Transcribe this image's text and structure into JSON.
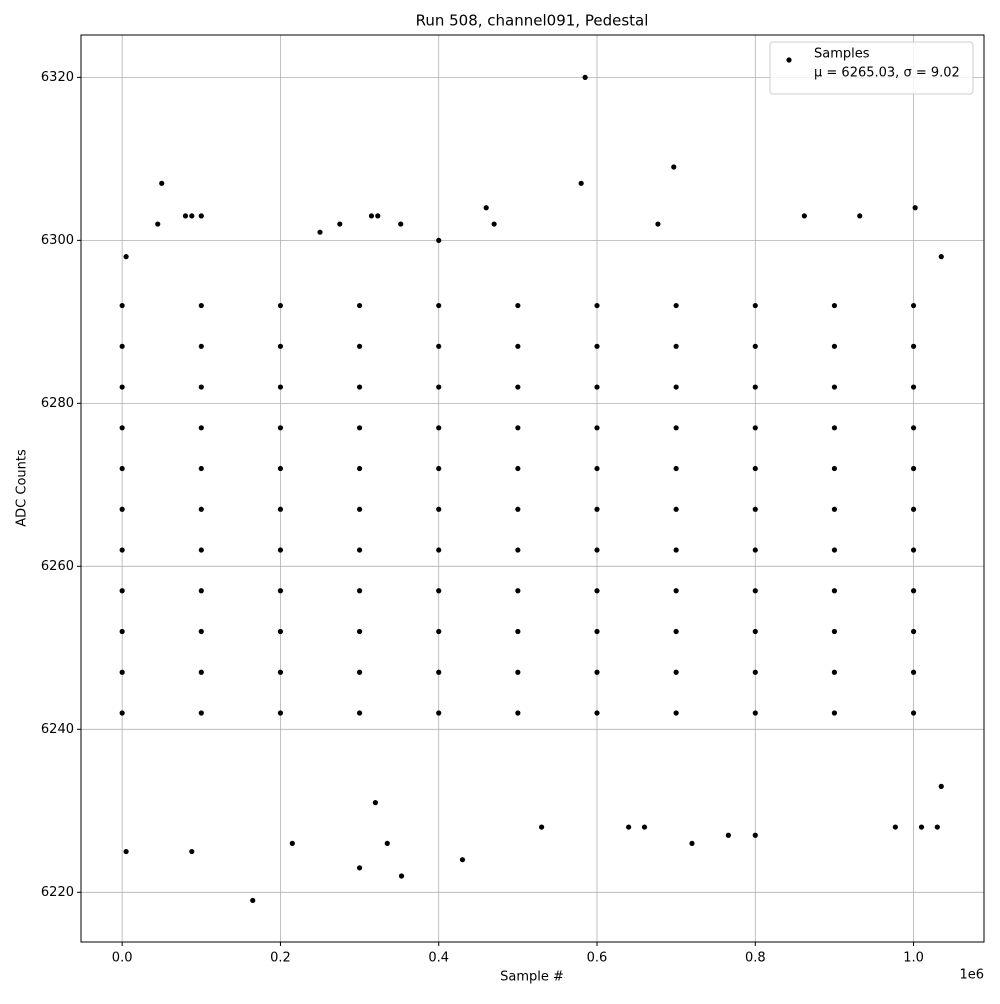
{
  "chart_data": {
    "type": "scatter",
    "title": "Run 508, channel091, Pedestal",
    "xlabel": "Sample #",
    "ylabel": "ADC Counts",
    "x_offset_label": "1e6",
    "xlim": [
      -52000,
      1089000
    ],
    "ylim": [
      6213.9,
      6325.2
    ],
    "xticks": [
      {
        "value": 0,
        "label": "0.0"
      },
      {
        "value": 200000,
        "label": "0.2"
      },
      {
        "value": 400000,
        "label": "0.4"
      },
      {
        "value": 600000,
        "label": "0.6"
      },
      {
        "value": 800000,
        "label": "0.8"
      },
      {
        "value": 1000000,
        "label": "1.0"
      }
    ],
    "yticks": [
      6220,
      6240,
      6260,
      6280,
      6300,
      6320
    ],
    "grid": true,
    "legend": "upper right",
    "legend_note": "μ = 6265.03, σ = 9.02",
    "series": [
      {
        "name": "Samples",
        "color": "#000000",
        "x": [
          5000,
          50000,
          45000,
          80000,
          88000,
          100000,
          88000,
          165000,
          215000,
          300000,
          335000,
          353000,
          430000,
          460000,
          470000,
          585000,
          580000,
          697000,
          677000,
          720000,
          766000,
          800000,
          862000,
          932000,
          1002000,
          977000,
          1030000,
          1010000,
          275000,
          315000,
          323000,
          352000,
          660000,
          640000,
          5000,
          1035000,
          1035000,
          320000,
          530000,
          250000,
          400000,
          0,
          100000,
          200000,
          300000,
          400000,
          500000,
          600000,
          700000,
          800000,
          900000,
          1000000,
          0,
          100000,
          200000,
          300000,
          400000,
          500000,
          600000,
          700000,
          800000,
          900000,
          1000000,
          0,
          100000,
          200000,
          300000,
          400000,
          500000,
          600000,
          700000,
          800000,
          900000,
          1000000,
          0,
          100000,
          200000,
          300000,
          400000,
          500000,
          600000,
          700000,
          800000,
          900000,
          1000000,
          0,
          100000,
          200000,
          300000,
          400000,
          500000,
          600000,
          700000,
          800000,
          900000,
          1000000,
          0,
          100000,
          200000,
          300000,
          400000,
          500000,
          600000,
          700000,
          800000,
          900000,
          1000000,
          0,
          100000,
          200000,
          300000,
          400000,
          500000,
          600000,
          700000,
          800000,
          900000,
          1000000,
          0,
          100000,
          200000,
          300000,
          400000,
          500000,
          600000,
          700000,
          800000,
          900000,
          1000000,
          0,
          100000,
          200000,
          300000,
          400000,
          500000,
          600000,
          700000,
          800000,
          900000,
          1000000,
          0,
          100000,
          200000,
          300000,
          400000,
          500000,
          600000,
          700000,
          800000,
          900000,
          1000000,
          0,
          100000,
          200000,
          300000,
          400000,
          500000,
          600000,
          700000,
          800000,
          900000,
          1000000
        ],
        "y": [
          6225,
          6307,
          6302,
          6303,
          6303,
          6303,
          6225,
          6219,
          6226,
          6223,
          6226,
          6222,
          6224,
          6304,
          6302,
          6320,
          6307,
          6309,
          6302,
          6226,
          6227,
          6227,
          6303,
          6303,
          6304,
          6228,
          6228,
          6228,
          6302,
          6303,
          6303,
          6302,
          6228,
          6228,
          6298,
          6298,
          6233,
          6231,
          6228,
          6301,
          6300,
          6242,
          6242,
          6242,
          6242,
          6242,
          6242,
          6242,
          6242,
          6242,
          6242,
          6242,
          6247,
          6247,
          6247,
          6247,
          6247,
          6247,
          6247,
          6247,
          6247,
          6247,
          6247,
          6252,
          6252,
          6252,
          6252,
          6252,
          6252,
          6252,
          6252,
          6252,
          6252,
          6252,
          6257,
          6257,
          6257,
          6257,
          6257,
          6257,
          6257,
          6257,
          6257,
          6257,
          6257,
          6262,
          6262,
          6262,
          6262,
          6262,
          6262,
          6262,
          6262,
          6262,
          6262,
          6262,
          6267,
          6267,
          6267,
          6267,
          6267,
          6267,
          6267,
          6267,
          6267,
          6267,
          6267,
          6272,
          6272,
          6272,
          6272,
          6272,
          6272,
          6272,
          6272,
          6272,
          6272,
          6272,
          6277,
          6277,
          6277,
          6277,
          6277,
          6277,
          6277,
          6277,
          6277,
          6277,
          6277,
          6282,
          6282,
          6282,
          6282,
          6282,
          6282,
          6282,
          6282,
          6282,
          6282,
          6282,
          6287,
          6287,
          6287,
          6287,
          6287,
          6287,
          6287,
          6287,
          6287,
          6287,
          6287,
          6292,
          6292,
          6292,
          6292,
          6292,
          6292,
          6292,
          6292,
          6292,
          6292,
          6292
        ]
      }
    ]
  }
}
